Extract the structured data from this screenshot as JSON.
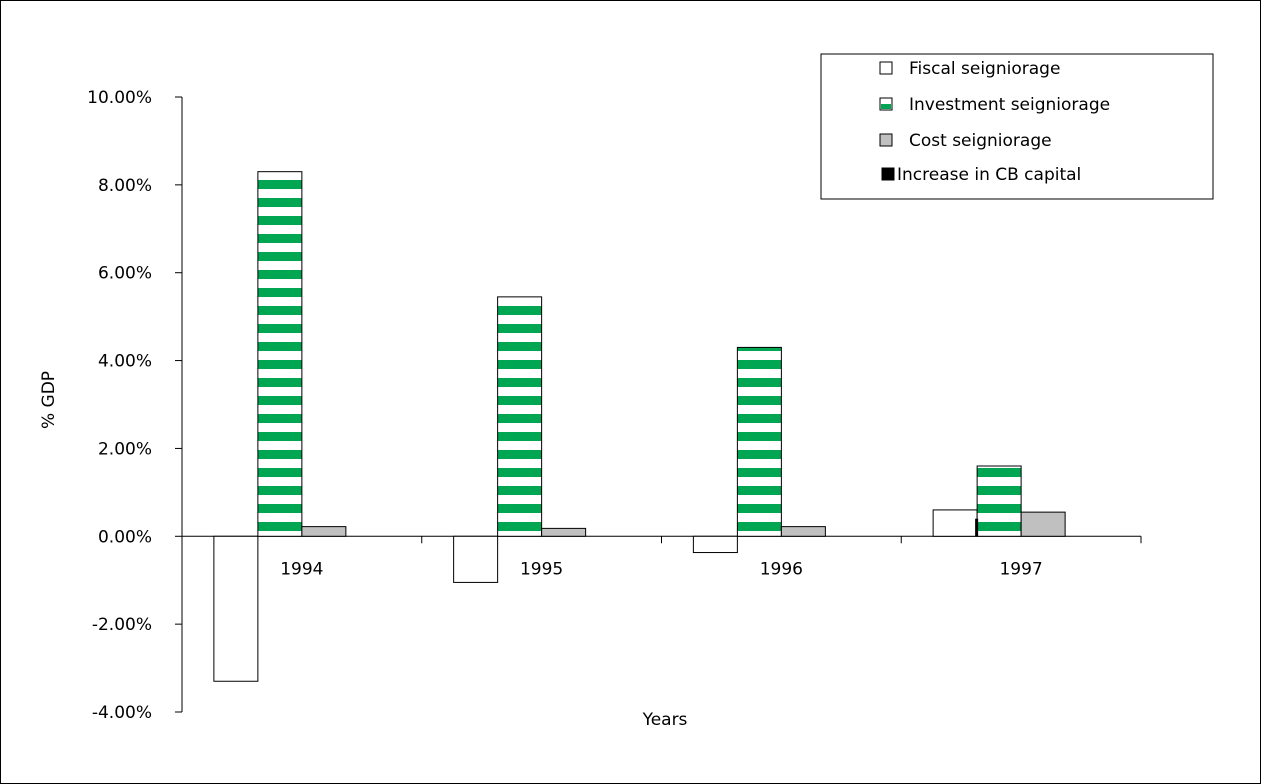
{
  "chart_data": {
    "type": "bar",
    "categories": [
      "1994",
      "1995",
      "1996",
      "1997"
    ],
    "series": [
      {
        "name": "Fiscal seigniorage",
        "values": [
          -3.3,
          -1.05,
          -0.37,
          0.6
        ],
        "color": "#ffffff",
        "pattern": "none"
      },
      {
        "name": "Investment seigniorage",
        "values": [
          8.3,
          5.45,
          4.3,
          1.6
        ],
        "color": "#00a651",
        "pattern": "horizontal-stripes"
      },
      {
        "name": "Cost seigniorage",
        "values": [
          0.22,
          0.18,
          0.22,
          0.55
        ],
        "color": "#c0c0c0",
        "pattern": "none"
      },
      {
        "name": "Increase in CB capital",
        "values": [
          0,
          0,
          0,
          0.4
        ],
        "color": "#000000",
        "pattern": "none"
      }
    ],
    "xlabel": "Years",
    "ylabel": "% GDP",
    "ylim": [
      -4,
      10
    ],
    "yticks": [
      "10.00%",
      "8.00%",
      "6.00%",
      "4.00%",
      "2.00%",
      "0.00%",
      "-2.00%",
      "-4.00%"
    ],
    "ytick_values": [
      10,
      8,
      6,
      4,
      2,
      0,
      -2,
      -4
    ],
    "grid": false,
    "legend_position": "top-right"
  }
}
